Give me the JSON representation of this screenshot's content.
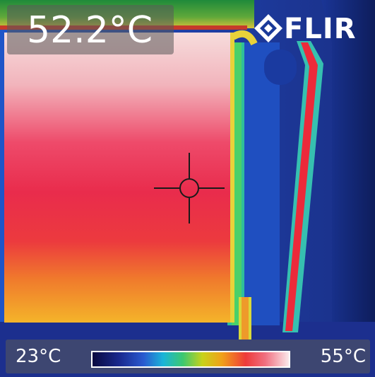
{
  "image": {
    "kind": "thermal camera image",
    "spot_temperature": "52.2°C",
    "brand_logo": "FLIR",
    "scale": {
      "min_label": "23°C",
      "max_label": "55°C"
    },
    "palette": [
      "#0a0a40",
      "#1a2a90",
      "#2a5ad0",
      "#1ab4d8",
      "#3cc870",
      "#c8d21a",
      "#f0a01a",
      "#ee3a3a",
      "#f07080",
      "#fbe8ea"
    ],
    "crosshair_icon": "crosshair-icon"
  }
}
